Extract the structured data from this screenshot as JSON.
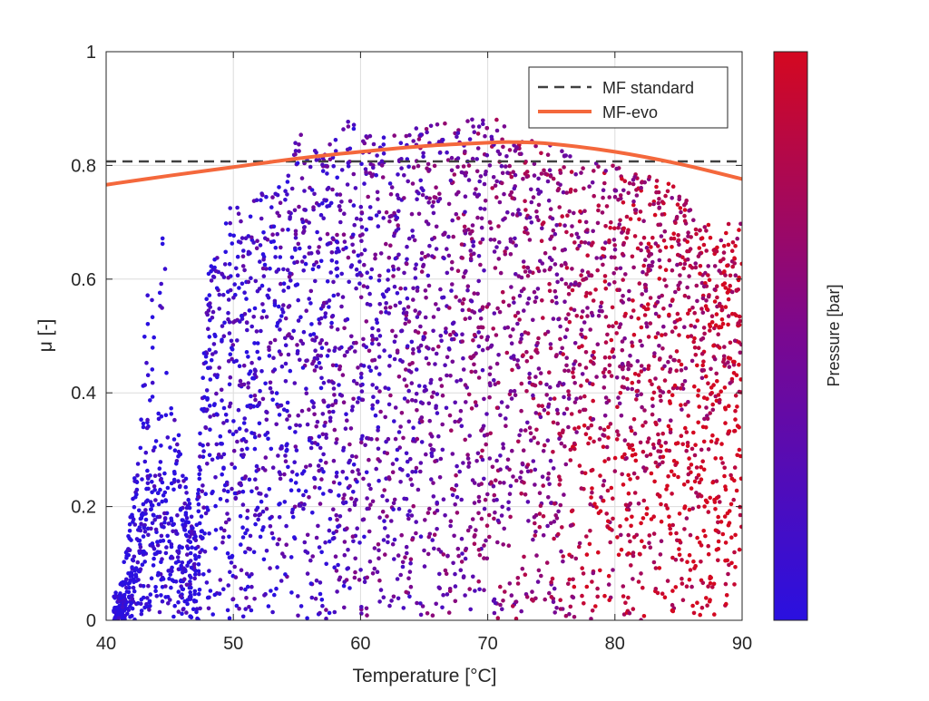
{
  "chart_data": {
    "type": "scatter",
    "xlabel": "Temperature [°C]",
    "ylabel": "μ [-]",
    "xlim": [
      40,
      90
    ],
    "ylim": [
      0,
      1
    ],
    "xticks": [
      "40",
      "50",
      "60",
      "70",
      "80",
      "90"
    ],
    "yticks": [
      "0",
      "0.2",
      "0.4",
      "0.6",
      "0.8",
      "1"
    ],
    "grid": true,
    "legend_position": "top-right",
    "colorbar": {
      "label": "Pressure [bar]",
      "colors": [
        "#2a10e0",
        "#7a0890",
        "#d40820"
      ]
    },
    "series": [
      {
        "name": "MF standard",
        "kind": "line",
        "style": "dashed",
        "color": "#404040",
        "points": [
          [
            40,
            0.807
          ],
          [
            90,
            0.807
          ]
        ]
      },
      {
        "name": "MF-evo",
        "kind": "line",
        "style": "solid",
        "color": "#f4683c",
        "points": [
          [
            40,
            0.766
          ],
          [
            45,
            0.782
          ],
          [
            50,
            0.797
          ],
          [
            55,
            0.812
          ],
          [
            60,
            0.824
          ],
          [
            65,
            0.834
          ],
          [
            70,
            0.84
          ],
          [
            72,
            0.841
          ],
          [
            75,
            0.838
          ],
          [
            80,
            0.824
          ],
          [
            85,
            0.803
          ],
          [
            90,
            0.776
          ]
        ]
      },
      {
        "name": "",
        "kind": "scatter",
        "description": "dense cloud of measurement points colored by pressure",
        "points": [
          [
            41,
            0.05
          ],
          [
            41.5,
            0.12
          ],
          [
            42,
            0.2
          ],
          [
            42.5,
            0.35
          ],
          [
            43,
            0.5
          ],
          [
            43.5,
            0.65
          ],
          [
            44,
            0.55
          ],
          [
            44.5,
            0.7
          ],
          [
            45,
            0.42
          ],
          [
            46,
            0.3
          ],
          [
            47,
            0.15
          ],
          [
            48,
            0.62
          ],
          [
            49,
            0.66
          ],
          [
            50,
            0.75
          ],
          [
            51,
            0.68
          ],
          [
            52,
            0.78
          ],
          [
            54,
            0.76
          ],
          [
            55,
            0.86
          ],
          [
            57,
            0.82
          ],
          [
            59,
            0.88
          ],
          [
            62,
            0.85
          ],
          [
            65,
            0.87
          ],
          [
            68,
            0.88
          ],
          [
            71,
            0.89
          ],
          [
            74,
            0.85
          ],
          [
            77,
            0.82
          ],
          [
            80,
            0.8
          ],
          [
            83,
            0.78
          ],
          [
            85,
            0.76
          ],
          [
            87,
            0.72
          ],
          [
            88,
            0.66
          ],
          [
            89,
            0.7
          ],
          [
            90,
            0.71
          ]
        ]
      }
    ]
  }
}
